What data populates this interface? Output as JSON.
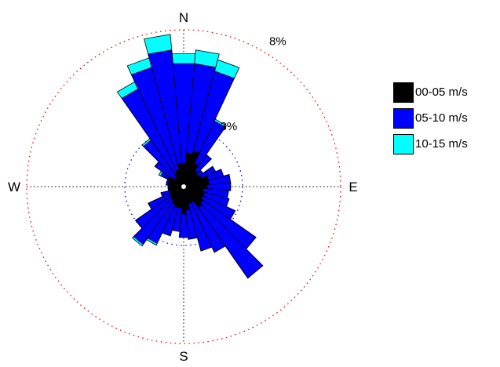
{
  "chart_data": {
    "type": "wind_rose",
    "directions": [
      "N",
      "E",
      "S",
      "W"
    ],
    "ring_labels": [
      {
        "value": 3,
        "text": "3%",
        "bearing_deg": 30,
        "ring_color": "#0000ff"
      },
      {
        "value": 8,
        "text": "8%",
        "bearing_deg": 30,
        "ring_color": "#ff0000"
      }
    ],
    "max_percent": 8,
    "sector_count": 36,
    "sector_width_deg": 10,
    "sector_bearings_deg": [
      0,
      10,
      20,
      30,
      40,
      50,
      60,
      70,
      80,
      90,
      100,
      110,
      120,
      130,
      140,
      150,
      160,
      170,
      180,
      190,
      200,
      210,
      220,
      230,
      240,
      250,
      260,
      270,
      280,
      290,
      300,
      310,
      320,
      330,
      340,
      350
    ],
    "series": [
      {
        "name": "00-05 m/s",
        "color": "#000000",
        "cumulative_percent": [
          1.2,
          1.7,
          1.9,
          1.3,
          1.0,
          0.9,
          1.0,
          1.3,
          1.3,
          1.2,
          1.0,
          1.1,
          1.1,
          1.2,
          1.3,
          0.9,
          0.9,
          1.2,
          1.4,
          1.1,
          1.1,
          1.0,
          0.9,
          0.8,
          0.8,
          0.7,
          0.8,
          0.7,
          0.8,
          0.8,
          0.9,
          0.6,
          0.6,
          0.8,
          0.9,
          1.2
        ]
      },
      {
        "name": "05-10 m/s",
        "color": "#0000ff",
        "cumulative_percent": [
          6.3,
          6.3,
          6.1,
          3.7,
          2.0,
          1.2,
          1.8,
          2.1,
          2.4,
          2.4,
          2.3,
          2.4,
          2.9,
          4.5,
          5.7,
          3.7,
          3.4,
          2.7,
          2.6,
          2.3,
          2.6,
          3.2,
          3.6,
          3.0,
          2.0,
          1.2,
          0.8,
          0.8,
          0.9,
          0.9,
          1.3,
          1.8,
          2.9,
          5.5,
          6.3,
          7.0
        ]
      },
      {
        "name": "10-15 m/s",
        "color": "#00ffff",
        "cumulative_percent": [
          6.8,
          7.0,
          6.7,
          3.8,
          2.0,
          1.2,
          1.8,
          2.1,
          2.4,
          2.4,
          2.3,
          2.4,
          2.9,
          4.5,
          5.7,
          3.7,
          3.4,
          2.7,
          2.6,
          2.3,
          2.6,
          3.3,
          3.7,
          3.0,
          2.0,
          1.2,
          0.8,
          0.8,
          0.9,
          0.9,
          1.4,
          1.8,
          3.0,
          5.9,
          6.8,
          7.8
        ]
      }
    ],
    "background_color": "#ffffff"
  }
}
